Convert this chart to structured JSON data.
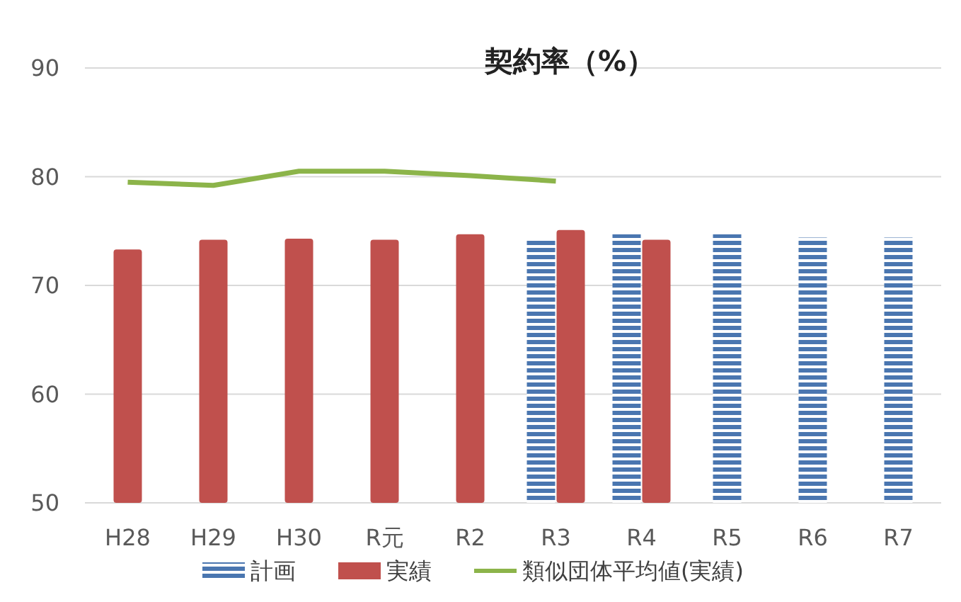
{
  "chart_data": {
    "type": "bar",
    "title": "契約率（%）",
    "categories": [
      "H28",
      "H29",
      "H30",
      "R元",
      "R2",
      "R3",
      "R4",
      "R5",
      "R6",
      "R7"
    ],
    "series": [
      {
        "name": "計画",
        "color": "#4a76b0",
        "values": [
          null,
          null,
          null,
          null,
          null,
          74.3,
          74.7,
          74.7,
          74.4,
          74.4
        ]
      },
      {
        "name": "実績",
        "color": "#c0504d",
        "values": [
          73.3,
          74.2,
          74.3,
          74.2,
          74.7,
          75.1,
          74.2,
          null,
          null,
          null
        ]
      },
      {
        "name": "類似団体平均値(実績)",
        "type": "line",
        "color": "#8cb44a",
        "values": [
          79.5,
          79.2,
          80.5,
          80.5,
          80.1,
          79.6,
          null,
          null,
          null,
          null
        ]
      }
    ],
    "ylim": [
      50,
      90
    ],
    "yticks": [
      50,
      60,
      70,
      80,
      90
    ],
    "grid": "y",
    "legend": "bottom",
    "marker": "none"
  }
}
